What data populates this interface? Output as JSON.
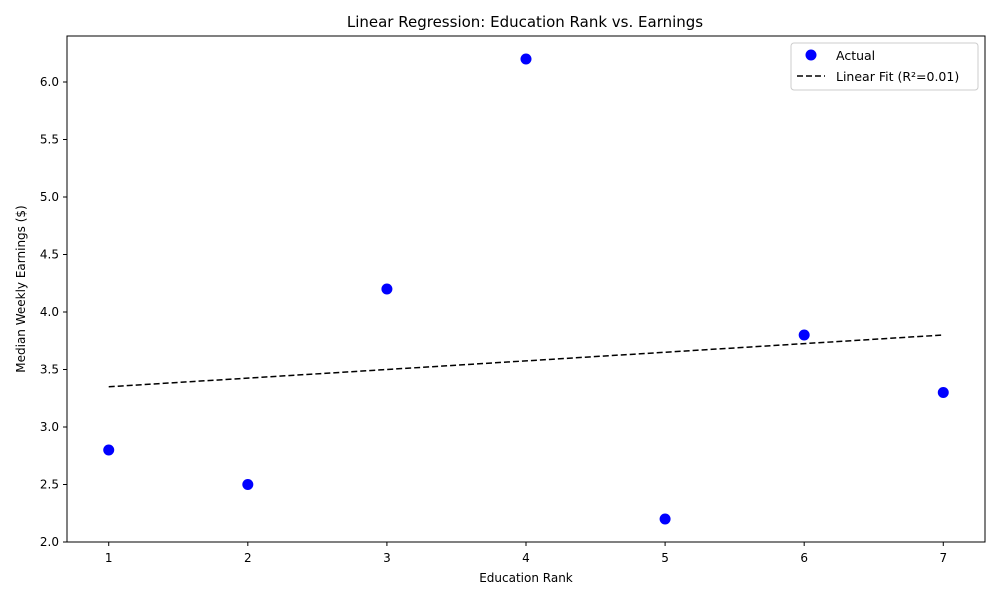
{
  "chart_data": {
    "type": "scatter",
    "title": "Linear Regression: Education Rank vs. Earnings",
    "xlabel": "Education Rank",
    "ylabel": "Median Weekly Earnings ($)",
    "xlim": [
      0.7,
      7.3
    ],
    "ylim": [
      2.0,
      6.4
    ],
    "xticks": [
      1,
      2,
      3,
      4,
      5,
      6,
      7
    ],
    "yticks": [
      2.0,
      2.5,
      3.0,
      3.5,
      4.0,
      4.5,
      5.0,
      5.5,
      6.0
    ],
    "grid": false,
    "legend_position": "top-right",
    "series": [
      {
        "name": "Actual",
        "kind": "scatter",
        "color": "#0000ff",
        "x": [
          1,
          2,
          3,
          4,
          5,
          6,
          7
        ],
        "y": [
          2.8,
          2.5,
          4.2,
          6.2,
          2.2,
          3.8,
          3.3
        ]
      },
      {
        "name": "Linear Fit (R²=0.01)",
        "kind": "line",
        "style": "dashed",
        "color": "#000000",
        "x": [
          1,
          7
        ],
        "y": [
          3.35,
          3.8
        ]
      }
    ]
  }
}
